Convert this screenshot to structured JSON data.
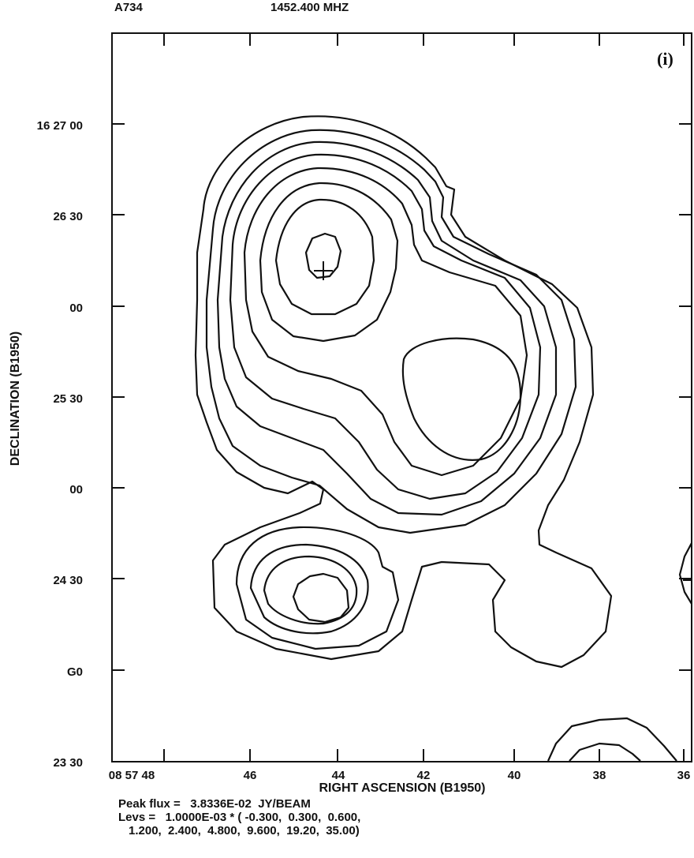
{
  "chart_data": {
    "type": "contour",
    "source": "A734",
    "frequency": "1452.400 MHZ",
    "panel_label": "(i)",
    "xlabel": "RIGHT ASCENSION (B1950)",
    "ylabel": "DECLINATION (B1950)",
    "x_ticks": [
      "08 57 48",
      "46",
      "44",
      "42",
      "40",
      "38",
      "36"
    ],
    "y_ticks": [
      "16 27 00",
      "26 30",
      "00",
      "25 30",
      "00",
      "24 30",
      "G0",
      "23 30"
    ],
    "peak_flux_line": "Peak flux =   3.8336E-02  JY/BEAM",
    "levs_line1": "Levs =   1.0000E-03 * ( -0.300,  0.300,  0.600,",
    "levs_line2": "1.200,  2.400,  4.800,  9.600,  19.20,  35.00)",
    "peak_flux_jy_per_beam": 0.038336,
    "base_level": 0.001,
    "levels": [
      -0.3,
      0.3,
      0.6,
      1.2,
      2.4,
      4.8,
      9.6,
      19.2,
      35.0
    ],
    "marker": "cross"
  }
}
